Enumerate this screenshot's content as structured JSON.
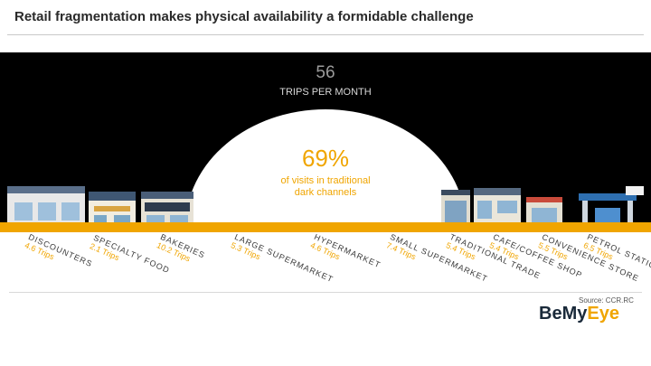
{
  "title": "Retail fragmentation makes physical availability a formidable challenge",
  "trips": {
    "number": "56",
    "label": "TRIPS PER MONTH"
  },
  "share": {
    "percent": "69%",
    "line1": "of visits in traditional",
    "line2": "dark channels"
  },
  "channels": [
    {
      "name": "DISCOUNTERS",
      "trips": "4.6 Trips"
    },
    {
      "name": "SPECIALTY FOOD",
      "trips": "2.1 Trips"
    },
    {
      "name": "BAKERIES",
      "trips": "10.2 Trips"
    },
    {
      "name": "LARGE SUPERMARKET",
      "trips": "5.3 Trips"
    },
    {
      "name": "HYPERMARKET",
      "trips": "4.6 Trips"
    },
    {
      "name": "SMALL SUPERMARKET",
      "trips": "7.4 Trips"
    },
    {
      "name": "TRADITIONAL TRADE",
      "trips": "5.4 Trips"
    },
    {
      "name": "CAFE/COFFEE SHOP",
      "trips": "5.4 Trips"
    },
    {
      "name": "CONVENIENCE STORE",
      "trips": "5.5 Trips"
    },
    {
      "name": "PETROL STATION",
      "trips": "6.5 Trips"
    }
  ],
  "source": "Source: CCR.RC",
  "logo": {
    "part1": "BeMy",
    "part2": "Eye"
  },
  "colors": {
    "accent": "#f0a500",
    "dark": "#000000",
    "text": "#2a2a2a"
  },
  "icons": [
    "discounter-store-icon",
    "bakery-store-icon",
    "supermarket-store-icon",
    "pharmacy-store-icon",
    "cafe-store-icon",
    "convenience-store-icon",
    "petrol-station-icon"
  ]
}
